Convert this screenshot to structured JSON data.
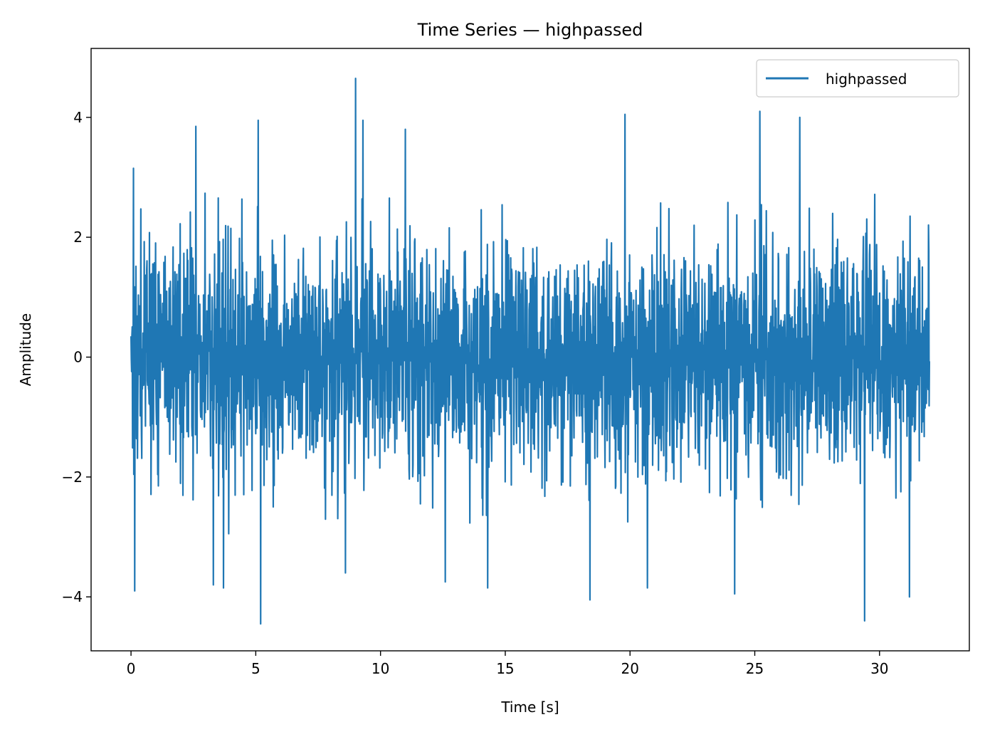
{
  "chart_data": {
    "type": "line",
    "title": "Time Series — highpassed",
    "xlabel": "Time [s]",
    "ylabel": "Amplitude",
    "xlim": [
      -1.6,
      33.6
    ],
    "ylim": [
      -4.9,
      5.15
    ],
    "xticks": [
      0,
      5,
      10,
      15,
      20,
      25,
      30
    ],
    "yticks": [
      -4,
      -2,
      0,
      2,
      4
    ],
    "xtick_labels": [
      "0",
      "5",
      "10",
      "15",
      "20",
      "25",
      "30"
    ],
    "ytick_labels": [
      "−4",
      "−2",
      "0",
      "2",
      "4"
    ],
    "grid": false,
    "legend": {
      "position": "top-right",
      "entries": [
        "highpassed"
      ]
    },
    "series": [
      {
        "name": "highpassed",
        "color": "#1f77b4",
        "x_range": [
          0,
          32
        ],
        "typical_envelope": [
          -2.8,
          2.8
        ],
        "peaks": [
          {
            "x": 0.1,
            "y": 3.15
          },
          {
            "x": 0.15,
            "y": -3.9
          },
          {
            "x": 2.6,
            "y": 3.85
          },
          {
            "x": 3.3,
            "y": -3.8
          },
          {
            "x": 3.7,
            "y": -3.85
          },
          {
            "x": 5.1,
            "y": 3.95
          },
          {
            "x": 5.2,
            "y": -4.45
          },
          {
            "x": 8.6,
            "y": -3.6
          },
          {
            "x": 9.0,
            "y": 4.65
          },
          {
            "x": 9.3,
            "y": 3.95
          },
          {
            "x": 11.0,
            "y": 3.8
          },
          {
            "x": 12.6,
            "y": -3.75
          },
          {
            "x": 14.3,
            "y": -3.85
          },
          {
            "x": 18.4,
            "y": -4.05
          },
          {
            "x": 19.8,
            "y": 4.05
          },
          {
            "x": 20.7,
            "y": -3.85
          },
          {
            "x": 24.2,
            "y": -3.95
          },
          {
            "x": 25.2,
            "y": 4.1
          },
          {
            "x": 26.8,
            "y": 4.0
          },
          {
            "x": 29.4,
            "y": -4.4
          },
          {
            "x": 31.2,
            "y": -4.0
          }
        ]
      }
    ]
  }
}
